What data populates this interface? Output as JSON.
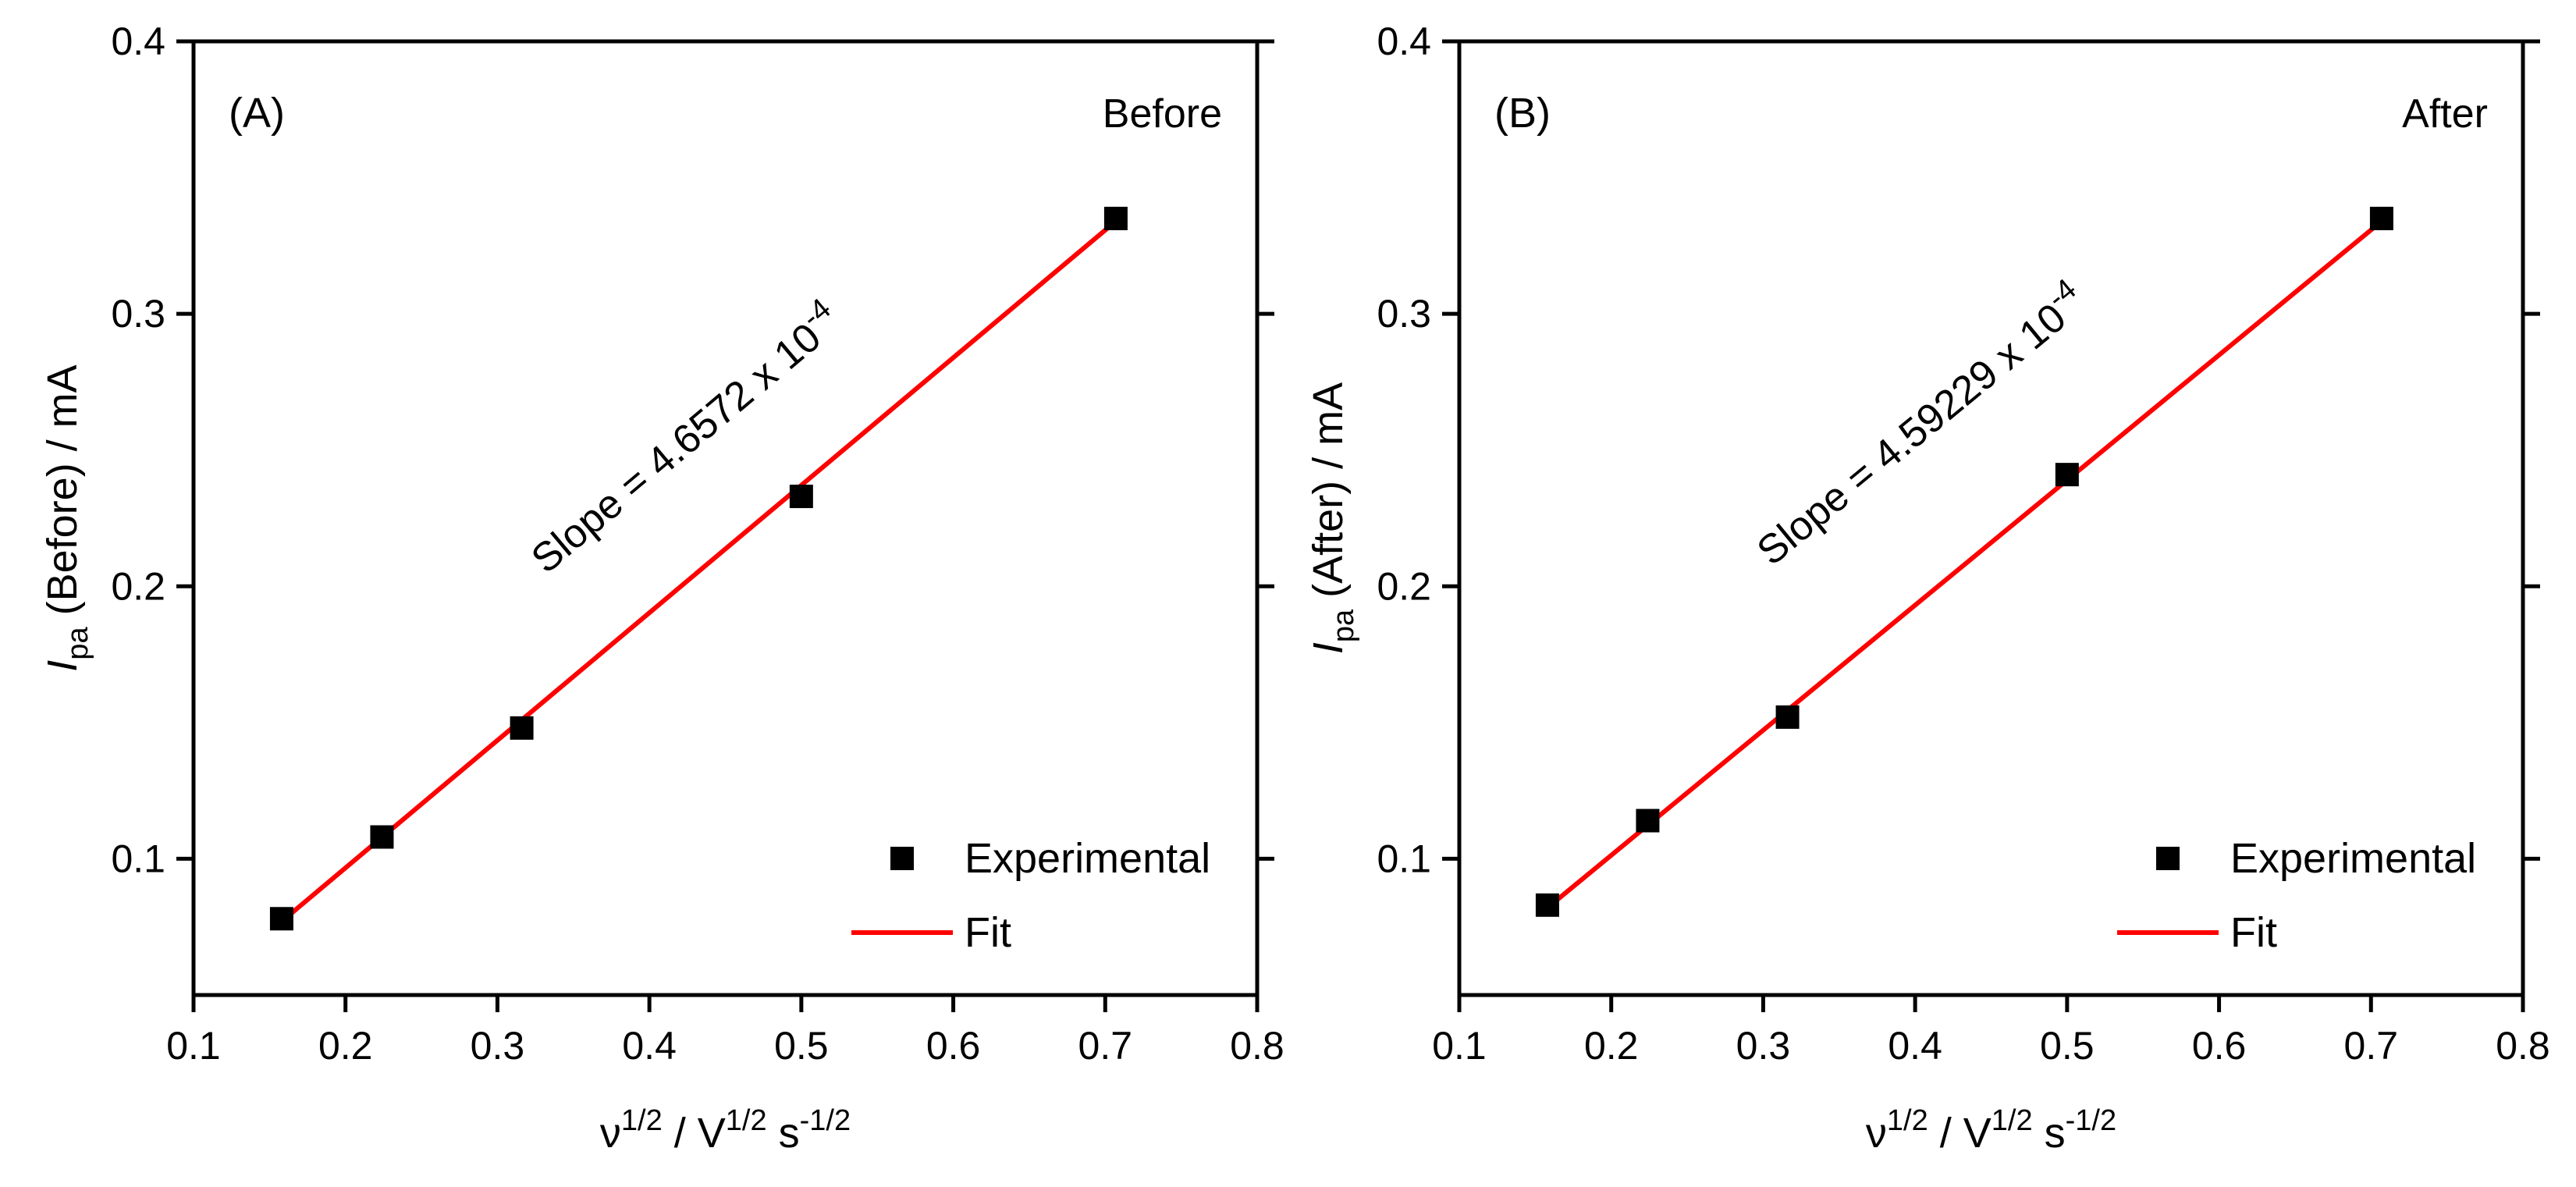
{
  "chart_data": [
    {
      "type": "scatter",
      "panel_label": "(A)",
      "condition_label": "Before",
      "xlabel": {
        "base": "ν",
        "sup1": "1/2",
        "mid": " / V",
        "sup2": "1/2",
        "tail": " s",
        "sup3": "-1/2"
      },
      "ylabel": {
        "italic": "I",
        "sub": "pa",
        "rest": " (Before) / mA"
      },
      "xlim": [
        0.1,
        0.8
      ],
      "ylim": [
        0.05,
        0.4
      ],
      "xticks": [
        0.1,
        0.2,
        0.3,
        0.4,
        0.5,
        0.6,
        0.7,
        0.8
      ],
      "xtick_labels": [
        "0.1",
        "0.2",
        "0.3",
        "0.4",
        "0.5",
        "0.6",
        "0.7",
        "0.8"
      ],
      "yticks": [
        0.1,
        0.2,
        0.3,
        0.4
      ],
      "ytick_labels": [
        "0.1",
        "0.2",
        "0.3",
        "0.4"
      ],
      "series": [
        {
          "name": "Experimental",
          "kind": "scatter",
          "marker": "square",
          "color": "#000000",
          "x": [
            0.158,
            0.224,
            0.316,
            0.5,
            0.707
          ],
          "y": [
            0.078,
            0.108,
            0.148,
            0.233,
            0.335
          ]
        },
        {
          "name": "Fit",
          "kind": "line",
          "color": "#ff0000",
          "x": [
            0.158,
            0.707
          ],
          "y": [
            0.077,
            0.334
          ]
        }
      ],
      "annotation": {
        "text": "Slope = 4.6572 x 10",
        "sup": "-4",
        "at_x": 0.43,
        "at_y": 0.25
      },
      "legend": {
        "position": "bottom-right",
        "entries": [
          "Experimental",
          "Fit"
        ]
      }
    },
    {
      "type": "scatter",
      "panel_label": "(B)",
      "condition_label": "After",
      "xlabel": {
        "base": "ν",
        "sup1": "1/2",
        "mid": " / V",
        "sup2": "1/2",
        "tail": " s",
        "sup3": "-1/2"
      },
      "ylabel": {
        "italic": "I",
        "sub": "pa",
        "rest": " (After) / mA"
      },
      "xlim": [
        0.1,
        0.8
      ],
      "ylim": [
        0.05,
        0.4
      ],
      "xticks": [
        0.1,
        0.2,
        0.3,
        0.4,
        0.5,
        0.6,
        0.7,
        0.8
      ],
      "xtick_labels": [
        "0.1",
        "0.2",
        "0.3",
        "0.4",
        "0.5",
        "0.6",
        "0.7",
        "0.8"
      ],
      "yticks": [
        0.1,
        0.2,
        0.3,
        0.4
      ],
      "ytick_labels": [
        "0.1",
        "0.2",
        "0.3",
        "0.4"
      ],
      "series": [
        {
          "name": "Experimental",
          "kind": "scatter",
          "marker": "square",
          "color": "#000000",
          "x": [
            0.158,
            0.224,
            0.316,
            0.5,
            0.707
          ],
          "y": [
            0.083,
            0.114,
            0.152,
            0.241,
            0.335
          ]
        },
        {
          "name": "Fit",
          "kind": "line",
          "color": "#ff0000",
          "x": [
            0.158,
            0.707
          ],
          "y": [
            0.082,
            0.334
          ]
        }
      ],
      "annotation": {
        "text": "Slope = 4.59229 x 10",
        "sup": "-4",
        "at_x": 0.41,
        "at_y": 0.255
      },
      "legend": {
        "position": "bottom-right",
        "entries": [
          "Experimental",
          "Fit"
        ]
      }
    }
  ]
}
